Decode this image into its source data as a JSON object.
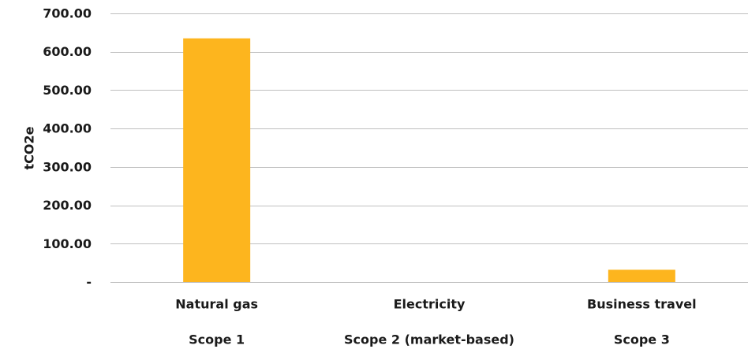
{
  "chart_data": {
    "type": "bar",
    "categories": [
      "Natural gas",
      "Electricity",
      "Business travel"
    ],
    "groups": [
      "Scope 1",
      "Scope 2 (market-based)",
      "Scope 3"
    ],
    "values": [
      635,
      0,
      32
    ],
    "ylabel": "tCO2e",
    "xlabel": "",
    "ylim": [
      0,
      700
    ],
    "yticks": [
      0,
      100,
      200,
      300,
      400,
      500,
      600,
      700
    ],
    "ytick_labels": [
      "-",
      "100.00",
      "200.00",
      "300.00",
      "400.00",
      "500.00",
      "600.00",
      "700.00"
    ],
    "grid": true,
    "legend": "none",
    "colors": {
      "bar": "#FDB51E",
      "grid": "#BFBFBF",
      "text": "#1A1A1A"
    }
  }
}
